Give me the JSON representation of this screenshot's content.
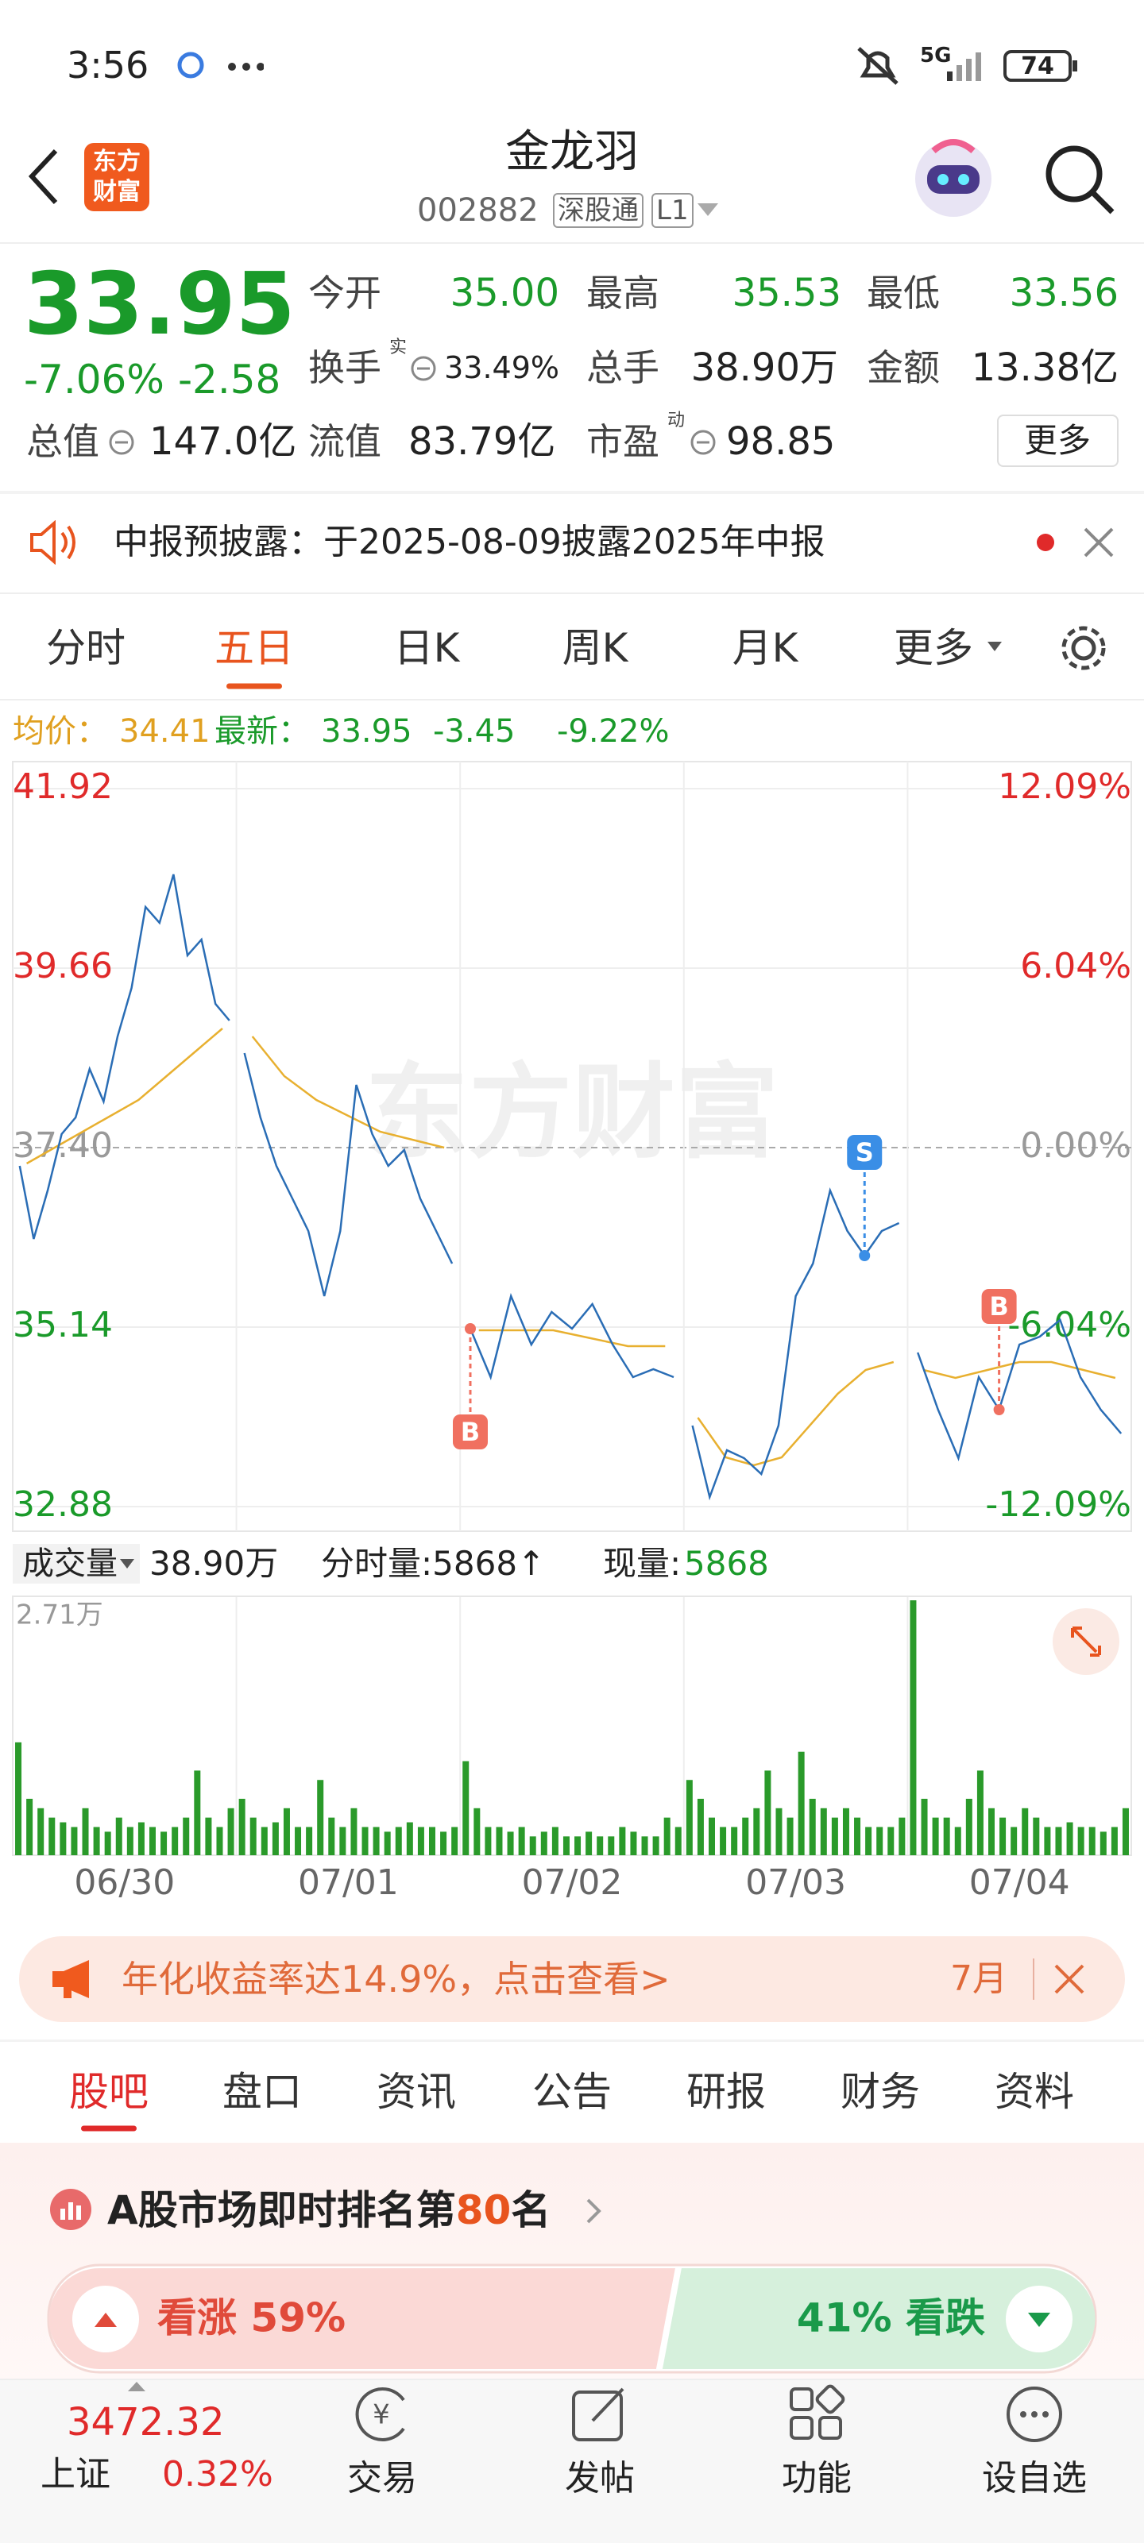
{
  "status": {
    "time": "3:56",
    "network": "5G",
    "battery": "74"
  },
  "header": {
    "logo": [
      "东方",
      "财富"
    ],
    "title": "金龙羽",
    "code": "002882",
    "badges": [
      "深股通",
      "L1"
    ]
  },
  "quote": {
    "price": "33.95",
    "change_pct": "-7.06%",
    "change": "-2.58",
    "fields": [
      {
        "label": "今开",
        "value": "35.00"
      },
      {
        "label": "最高",
        "value": "35.53"
      },
      {
        "label": "最低",
        "value": "33.56"
      },
      {
        "label": "换手",
        "sup": "实",
        "value": "33.49%"
      },
      {
        "label": "总手",
        "value": "38.90万"
      },
      {
        "label": "金额",
        "value": "13.38亿"
      },
      {
        "label": "总值",
        "value": "147.0亿"
      },
      {
        "label": "流值",
        "value": "83.79亿"
      },
      {
        "label": "市盈",
        "sup": "动",
        "value": "98.85"
      }
    ],
    "more": "更多"
  },
  "notice": {
    "text": "中报预披露：于2025-08-09披露2025年中报"
  },
  "tabs": {
    "items": [
      "分时",
      "五日",
      "日K",
      "周K",
      "月K",
      "更多"
    ],
    "active": 1
  },
  "info": {
    "avg_label": "均价：",
    "avg": "34.41",
    "latest_label": "最新：",
    "latest": "33.95",
    "change": "-3.45",
    "change_pct": "-9.22%"
  },
  "chart_data": {
    "type": "line",
    "watermark": "东方财富",
    "categories": [
      "06/30",
      "07/01",
      "07/02",
      "07/03",
      "07/04"
    ],
    "price_color": "#2a6db5",
    "avg_color": "#e8b030",
    "days": [
      {
        "price": [
          37.17,
          36.25,
          36.86,
          37.57,
          37.78,
          38.39,
          37.98,
          38.8,
          39.41,
          40.43,
          40.23,
          40.84,
          39.82,
          40.02,
          39.21,
          39.0
        ],
        "avg": [
          37.2,
          37.4,
          37.6,
          37.8,
          38.0,
          38.3,
          38.6,
          38.9
        ]
      },
      {
        "price": [
          38.59,
          37.78,
          37.17,
          36.76,
          36.35,
          35.53,
          36.35,
          38.19,
          37.57,
          37.17,
          37.37,
          36.76,
          36.35,
          35.94
        ],
        "avg": [
          38.8,
          38.3,
          38.0,
          37.8,
          37.6,
          37.5,
          37.4
        ]
      },
      {
        "price": [
          35.12,
          34.51,
          35.53,
          34.92,
          35.33,
          35.12,
          35.43,
          34.92,
          34.51,
          34.61,
          34.51
        ],
        "avg": [
          35.1,
          35.1,
          35.1,
          35.0,
          34.9,
          34.9
        ]
      },
      {
        "price": [
          33.9,
          33.0,
          33.59,
          33.49,
          33.29,
          33.9,
          35.53,
          35.94,
          36.86,
          36.35,
          36.04,
          36.35,
          36.45
        ],
        "avg": [
          34.0,
          33.5,
          33.4,
          33.5,
          33.9,
          34.3,
          34.6,
          34.7
        ]
      },
      {
        "price": [
          34.82,
          34.1,
          33.49,
          34.51,
          34.1,
          34.92,
          35.02,
          35.23,
          34.51,
          34.1,
          33.8
        ],
        "avg": [
          34.6,
          34.5,
          34.6,
          34.7,
          34.7,
          34.6,
          34.5
        ]
      }
    ],
    "markers": [
      {
        "label": "B",
        "day": 2,
        "point": 0,
        "side": "below",
        "color": "#f07060"
      },
      {
        "label": "S",
        "day": 3,
        "point": 10,
        "side": "above",
        "color": "#3a8ee6"
      },
      {
        "label": "B",
        "day": 4,
        "point": 4,
        "side": "above",
        "color": "#f07060"
      }
    ],
    "ylim": [
      32.88,
      41.92
    ],
    "yticks": [
      41.92,
      39.66,
      {
        "value": 37.4,
        "label": "37.40"
      },
      35.14,
      32.88
    ],
    "y2lim": [
      -12.09,
      12.09
    ],
    "y2ticks": [
      {
        "value": 12.09,
        "label": "12.09%"
      },
      {
        "value": 6.04,
        "label": "6.04%"
      },
      {
        "value": 0,
        "label": "0.00%"
      },
      {
        "value": -6.04,
        "label": "-6.04%"
      },
      {
        "value": -12.09,
        "label": "-12.09%"
      }
    ],
    "volume": {
      "title": "成交量",
      "total": "38.90万",
      "bar_label": "分时量:5868↑",
      "now_label": "现量:",
      "now": "5868",
      "color": "#2a9a2a",
      "ylim": [
        0,
        2.71
      ],
      "yticks": [
        {
          "value": 2.71,
          "label": "2.71万"
        }
      ],
      "days": [
        [
          1.2,
          0.6,
          0.5,
          0.4,
          0.35,
          0.3,
          0.5,
          0.3,
          0.25,
          0.4,
          0.3,
          0.35,
          0.3,
          0.25,
          0.3,
          0.4,
          0.9,
          0.4,
          0.3,
          0.5
        ],
        [
          0.6,
          0.4,
          0.3,
          0.35,
          0.5,
          0.3,
          0.3,
          0.8,
          0.4,
          0.3,
          0.5,
          0.3,
          0.3,
          0.25,
          0.3,
          0.35,
          0.3,
          0.3,
          0.25,
          0.3
        ],
        [
          1.0,
          0.5,
          0.3,
          0.3,
          0.25,
          0.3,
          0.2,
          0.25,
          0.3,
          0.2,
          0.2,
          0.25,
          0.2,
          0.2,
          0.3,
          0.25,
          0.2,
          0.2,
          0.4,
          0.3
        ],
        [
          0.8,
          0.6,
          0.4,
          0.3,
          0.3,
          0.4,
          0.5,
          0.9,
          0.5,
          0.4,
          1.1,
          0.6,
          0.5,
          0.4,
          0.5,
          0.4,
          0.3,
          0.3,
          0.3,
          0.4
        ],
        [
          2.71,
          0.6,
          0.4,
          0.4,
          0.3,
          0.6,
          0.9,
          0.5,
          0.4,
          0.3,
          0.5,
          0.4,
          0.3,
          0.3,
          0.35,
          0.3,
          0.3,
          0.25,
          0.3,
          0.5
        ]
      ]
    }
  },
  "banner": {
    "text": "年化收益率达14.9%，点击查看>",
    "month": "7月"
  },
  "sections": {
    "items": [
      "股吧",
      "盘口",
      "资讯",
      "公告",
      "研报",
      "财务",
      "资料"
    ],
    "active": 0
  },
  "rank": {
    "prefix": "A股市场即时排名第",
    "rank": "80",
    "suffix": "名"
  },
  "sentiment": {
    "up_value": 59,
    "up_label": "看涨 59%",
    "down_value": 41,
    "down_label": "41% 看跌"
  },
  "bottom": {
    "index_value": "3472.32",
    "index_name": "上证",
    "index_change": "0.32%",
    "nav": [
      "交易",
      "发帖",
      "功能",
      "设自选"
    ]
  }
}
